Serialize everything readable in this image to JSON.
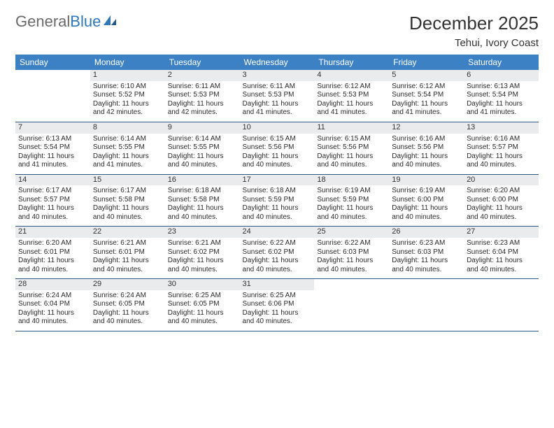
{
  "logo": {
    "part1": "General",
    "part2": "Blue"
  },
  "header": {
    "title": "December 2025",
    "location": "Tehui, Ivory Coast"
  },
  "colors": {
    "header_bg": "#3c81c4",
    "header_fg": "#ffffff",
    "daynum_bg": "#e9ebed",
    "cell_border": "#2f5a83",
    "text": "#2b2b2b"
  },
  "fonts": {
    "title_pt": 26,
    "location_pt": 15,
    "dow_pt": 12,
    "daynum_pt": 11,
    "body_pt": 10
  },
  "labels": {
    "sunrise": "Sunrise:",
    "sunset": "Sunset:",
    "daylight": "Daylight:"
  },
  "days_of_week": [
    "Sunday",
    "Monday",
    "Tuesday",
    "Wednesday",
    "Thursday",
    "Friday",
    "Saturday"
  ],
  "weeks": [
    [
      null,
      {
        "n": "1",
        "sr": "6:10 AM",
        "ss": "5:52 PM",
        "dl": "11 hours and 42 minutes."
      },
      {
        "n": "2",
        "sr": "6:11 AM",
        "ss": "5:53 PM",
        "dl": "11 hours and 42 minutes."
      },
      {
        "n": "3",
        "sr": "6:11 AM",
        "ss": "5:53 PM",
        "dl": "11 hours and 41 minutes."
      },
      {
        "n": "4",
        "sr": "6:12 AM",
        "ss": "5:53 PM",
        "dl": "11 hours and 41 minutes."
      },
      {
        "n": "5",
        "sr": "6:12 AM",
        "ss": "5:54 PM",
        "dl": "11 hours and 41 minutes."
      },
      {
        "n": "6",
        "sr": "6:13 AM",
        "ss": "5:54 PM",
        "dl": "11 hours and 41 minutes."
      }
    ],
    [
      {
        "n": "7",
        "sr": "6:13 AM",
        "ss": "5:54 PM",
        "dl": "11 hours and 41 minutes."
      },
      {
        "n": "8",
        "sr": "6:14 AM",
        "ss": "5:55 PM",
        "dl": "11 hours and 41 minutes."
      },
      {
        "n": "9",
        "sr": "6:14 AM",
        "ss": "5:55 PM",
        "dl": "11 hours and 40 minutes."
      },
      {
        "n": "10",
        "sr": "6:15 AM",
        "ss": "5:56 PM",
        "dl": "11 hours and 40 minutes."
      },
      {
        "n": "11",
        "sr": "6:15 AM",
        "ss": "5:56 PM",
        "dl": "11 hours and 40 minutes."
      },
      {
        "n": "12",
        "sr": "6:16 AM",
        "ss": "5:56 PM",
        "dl": "11 hours and 40 minutes."
      },
      {
        "n": "13",
        "sr": "6:16 AM",
        "ss": "5:57 PM",
        "dl": "11 hours and 40 minutes."
      }
    ],
    [
      {
        "n": "14",
        "sr": "6:17 AM",
        "ss": "5:57 PM",
        "dl": "11 hours and 40 minutes."
      },
      {
        "n": "15",
        "sr": "6:17 AM",
        "ss": "5:58 PM",
        "dl": "11 hours and 40 minutes."
      },
      {
        "n": "16",
        "sr": "6:18 AM",
        "ss": "5:58 PM",
        "dl": "11 hours and 40 minutes."
      },
      {
        "n": "17",
        "sr": "6:18 AM",
        "ss": "5:59 PM",
        "dl": "11 hours and 40 minutes."
      },
      {
        "n": "18",
        "sr": "6:19 AM",
        "ss": "5:59 PM",
        "dl": "11 hours and 40 minutes."
      },
      {
        "n": "19",
        "sr": "6:19 AM",
        "ss": "6:00 PM",
        "dl": "11 hours and 40 minutes."
      },
      {
        "n": "20",
        "sr": "6:20 AM",
        "ss": "6:00 PM",
        "dl": "11 hours and 40 minutes."
      }
    ],
    [
      {
        "n": "21",
        "sr": "6:20 AM",
        "ss": "6:01 PM",
        "dl": "11 hours and 40 minutes."
      },
      {
        "n": "22",
        "sr": "6:21 AM",
        "ss": "6:01 PM",
        "dl": "11 hours and 40 minutes."
      },
      {
        "n": "23",
        "sr": "6:21 AM",
        "ss": "6:02 PM",
        "dl": "11 hours and 40 minutes."
      },
      {
        "n": "24",
        "sr": "6:22 AM",
        "ss": "6:02 PM",
        "dl": "11 hours and 40 minutes."
      },
      {
        "n": "25",
        "sr": "6:22 AM",
        "ss": "6:03 PM",
        "dl": "11 hours and 40 minutes."
      },
      {
        "n": "26",
        "sr": "6:23 AM",
        "ss": "6:03 PM",
        "dl": "11 hours and 40 minutes."
      },
      {
        "n": "27",
        "sr": "6:23 AM",
        "ss": "6:04 PM",
        "dl": "11 hours and 40 minutes."
      }
    ],
    [
      {
        "n": "28",
        "sr": "6:24 AM",
        "ss": "6:04 PM",
        "dl": "11 hours and 40 minutes."
      },
      {
        "n": "29",
        "sr": "6:24 AM",
        "ss": "6:05 PM",
        "dl": "11 hours and 40 minutes."
      },
      {
        "n": "30",
        "sr": "6:25 AM",
        "ss": "6:05 PM",
        "dl": "11 hours and 40 minutes."
      },
      {
        "n": "31",
        "sr": "6:25 AM",
        "ss": "6:06 PM",
        "dl": "11 hours and 40 minutes."
      },
      null,
      null,
      null
    ]
  ]
}
